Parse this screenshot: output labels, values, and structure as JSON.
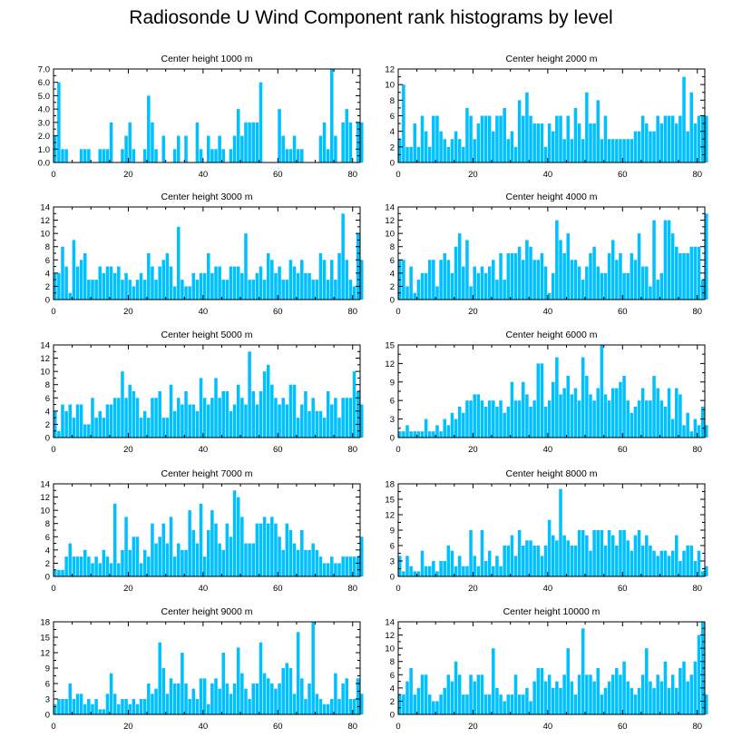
{
  "figure_title": "Radiosonde U Wind Component rank histograms by level",
  "bar_color": "#00c0ff",
  "chart_data": [
    {
      "type": "bar",
      "title": "Center height 1000 m",
      "xlim": [
        0,
        82
      ],
      "ylim": [
        0,
        7
      ],
      "yticks": [
        "0.0",
        "1.0",
        "2.0",
        "3.0",
        "4.0",
        "5.0",
        "6.0",
        "7.0"
      ],
      "ytick_values": [
        0,
        1,
        2,
        3,
        4,
        5,
        6,
        7
      ],
      "xticks": [
        0,
        20,
        40,
        60,
        80
      ],
      "values": [
        2,
        6,
        1,
        1,
        0,
        0,
        0,
        1,
        1,
        1,
        0,
        0,
        1,
        1,
        1,
        3,
        0,
        0,
        1,
        2,
        3,
        1,
        0,
        0,
        1,
        5,
        3,
        1,
        0,
        2,
        0,
        0,
        1,
        2,
        0,
        2,
        0,
        0,
        3,
        1,
        0,
        2,
        1,
        1,
        2,
        1,
        0,
        1,
        2,
        4,
        2,
        3,
        3,
        3,
        3,
        6,
        0,
        0,
        0,
        0,
        4,
        2,
        1,
        1,
        2,
        1,
        1,
        0,
        0,
        0,
        0,
        2,
        3,
        1,
        7,
        2,
        0,
        3,
        4,
        3,
        0,
        3,
        3
      ]
    },
    {
      "type": "bar",
      "title": "Center height 2000 m",
      "xlim": [
        0,
        82
      ],
      "ylim": [
        0,
        12
      ],
      "yticks": [
        "0",
        "2",
        "4",
        "6",
        "8",
        "10",
        "12"
      ],
      "ytick_values": [
        0,
        2,
        4,
        6,
        8,
        10,
        12
      ],
      "xticks": [
        0,
        20,
        40,
        60,
        80
      ],
      "values": [
        3,
        10,
        2,
        2,
        5,
        2,
        6,
        4,
        2,
        6,
        6,
        4,
        3,
        2,
        3,
        4,
        3,
        2,
        7,
        6,
        3,
        5,
        6,
        6,
        6,
        4,
        6,
        6,
        7,
        3,
        4,
        2,
        8,
        6,
        9,
        6,
        5,
        5,
        5,
        2,
        5,
        4,
        6,
        6,
        3,
        6,
        3,
        7,
        5,
        3,
        9,
        5,
        5,
        8,
        3,
        6,
        3,
        3,
        3,
        3,
        3,
        3,
        3,
        4,
        4,
        6,
        5,
        4,
        4,
        6,
        5,
        6,
        6,
        6,
        5,
        6,
        11,
        4,
        9,
        5,
        6,
        6,
        6
      ]
    },
    {
      "type": "bar",
      "title": "Center height 3000 m",
      "xlim": [
        0,
        82
      ],
      "ylim": [
        0,
        14
      ],
      "yticks": [
        "0",
        "2",
        "4",
        "6",
        "8",
        "10",
        "12",
        "14"
      ],
      "ytick_values": [
        0,
        2,
        4,
        6,
        8,
        10,
        12,
        14
      ],
      "xticks": [
        0,
        20,
        40,
        60,
        80
      ],
      "values": [
        4,
        4,
        8,
        5,
        1,
        9,
        5,
        6,
        7,
        3,
        3,
        3,
        5,
        4,
        5,
        5,
        4,
        5,
        3,
        4,
        3,
        2,
        3,
        4,
        3,
        7,
        5,
        3,
        5,
        6,
        7,
        5,
        2,
        11,
        3,
        2,
        2,
        4,
        3,
        4,
        4,
        7,
        4,
        5,
        5,
        3,
        3,
        5,
        5,
        5,
        4,
        10,
        3,
        3,
        4,
        5,
        3,
        7,
        6,
        4,
        5,
        3,
        3,
        6,
        5,
        4,
        6,
        4,
        4,
        3,
        3,
        7,
        6,
        3,
        6,
        3,
        7,
        13,
        6,
        3,
        2,
        10,
        6
      ]
    },
    {
      "type": "bar",
      "title": "Center height 4000 m",
      "xlim": [
        0,
        82
      ],
      "ylim": [
        0,
        14
      ],
      "yticks": [
        "0",
        "2",
        "4",
        "6",
        "8",
        "10",
        "12",
        "14"
      ],
      "ytick_values": [
        0,
        2,
        4,
        6,
        8,
        10,
        12,
        14
      ],
      "xticks": [
        0,
        20,
        40,
        60,
        80
      ],
      "values": [
        6,
        6,
        2,
        5,
        1,
        3,
        4,
        4,
        6,
        6,
        2,
        6,
        7,
        6,
        4,
        8,
        10,
        5,
        9,
        2,
        5,
        4,
        5,
        4,
        5,
        6,
        3,
        7,
        3,
        7,
        7,
        7,
        8,
        6,
        9,
        8,
        6,
        6,
        7,
        5,
        1,
        4,
        12,
        9,
        7,
        10,
        6,
        6,
        5,
        3,
        5,
        7,
        8,
        5,
        4,
        4,
        7,
        9,
        6,
        7,
        4,
        4,
        7,
        6,
        10,
        5,
        5,
        2,
        12,
        3,
        4,
        12,
        12,
        10,
        8,
        7,
        7,
        7,
        8,
        8,
        8,
        3,
        13
      ]
    },
    {
      "type": "bar",
      "title": "Center height 5000 m",
      "xlim": [
        0,
        82
      ],
      "ylim": [
        0,
        14
      ],
      "yticks": [
        "0",
        "2",
        "4",
        "6",
        "8",
        "10",
        "12",
        "14"
      ],
      "ytick_values": [
        0,
        2,
        4,
        6,
        8,
        10,
        12,
        14
      ],
      "xticks": [
        0,
        20,
        40,
        60,
        80
      ],
      "values": [
        4,
        1,
        5,
        4,
        5,
        3,
        5,
        5,
        2,
        2,
        6,
        3,
        4,
        3,
        5,
        5,
        6,
        6,
        10,
        6,
        8,
        7,
        6,
        3,
        4,
        3,
        6,
        6,
        7,
        3,
        3,
        8,
        4,
        6,
        5,
        7,
        5,
        5,
        4,
        9,
        6,
        5,
        6,
        9,
        6,
        7,
        7,
        4,
        5,
        8,
        6,
        5,
        13,
        7,
        5,
        7,
        10,
        11,
        8,
        6,
        5,
        6,
        5,
        8,
        8,
        3,
        5,
        7,
        4,
        6,
        4,
        4,
        3,
        7,
        5,
        6,
        3,
        6,
        6,
        6,
        10,
        7,
        5
      ]
    },
    {
      "type": "bar",
      "title": "Center height 6000 m",
      "xlim": [
        0,
        82
      ],
      "ylim": [
        0,
        15
      ],
      "yticks": [
        "0",
        "3",
        "6",
        "9",
        "12",
        "15"
      ],
      "ytick_values": [
        0,
        3,
        6,
        9,
        12,
        15
      ],
      "xticks": [
        0,
        20,
        40,
        60,
        80
      ],
      "values": [
        1,
        1,
        2,
        1,
        1,
        1,
        1,
        3,
        1,
        1,
        2,
        1,
        3,
        2,
        4,
        3,
        5,
        4,
        6,
        6,
        7,
        7,
        6,
        5,
        6,
        6,
        5,
        6,
        4,
        5,
        9,
        6,
        6,
        9,
        7,
        5,
        6,
        12,
        12,
        5,
        6,
        9,
        13,
        7,
        8,
        10,
        7,
        8,
        6,
        13,
        10,
        7,
        6,
        8,
        15,
        7,
        6,
        8,
        8,
        9,
        10,
        6,
        4,
        5,
        6,
        8,
        6,
        6,
        10,
        8,
        6,
        5,
        8,
        3,
        8,
        7,
        2,
        4,
        1,
        3,
        2,
        5,
        2
      ]
    },
    {
      "type": "bar",
      "title": "Center height 7000 m",
      "xlim": [
        0,
        82
      ],
      "ylim": [
        0,
        14
      ],
      "yticks": [
        "0",
        "2",
        "4",
        "6",
        "8",
        "10",
        "12",
        "14"
      ],
      "ytick_values": [
        0,
        2,
        4,
        6,
        8,
        10,
        12,
        14
      ],
      "xticks": [
        0,
        20,
        40,
        60,
        80
      ],
      "values": [
        1,
        1,
        1,
        3,
        5,
        3,
        3,
        3,
        4,
        3,
        2,
        3,
        2,
        4,
        3,
        2,
        11,
        2,
        4,
        9,
        4,
        6,
        6,
        2,
        4,
        3,
        8,
        5,
        6,
        8,
        5,
        9,
        3,
        5,
        4,
        4,
        10,
        7,
        5,
        11,
        3,
        7,
        10,
        8,
        5,
        4,
        8,
        6,
        13,
        12,
        9,
        5,
        5,
        5,
        8,
        8,
        9,
        8,
        9,
        8,
        6,
        4,
        8,
        7,
        5,
        4,
        7,
        4,
        4,
        5,
        4,
        3,
        2,
        2,
        3,
        2,
        2,
        3,
        3,
        3,
        3,
        3,
        6
      ]
    },
    {
      "type": "bar",
      "title": "Center height 8000 m",
      "xlim": [
        0,
        82
      ],
      "ylim": [
        0,
        18
      ],
      "yticks": [
        "0",
        "3",
        "6",
        "9",
        "12",
        "15",
        "18"
      ],
      "ytick_values": [
        0,
        3,
        6,
        9,
        12,
        15,
        18
      ],
      "xticks": [
        0,
        20,
        40,
        60,
        80
      ],
      "values": [
        4,
        1,
        4,
        2,
        1,
        1,
        5,
        2,
        2,
        3,
        1,
        3,
        3,
        6,
        5,
        2,
        4,
        2,
        2,
        9,
        4,
        2,
        9,
        3,
        5,
        2,
        4,
        2,
        6,
        6,
        8,
        4,
        9,
        6,
        7,
        7,
        6,
        6,
        4,
        6,
        11,
        8,
        7,
        17,
        8,
        7,
        6,
        6,
        9,
        9,
        8,
        5,
        9,
        9,
        9,
        6,
        9,
        8,
        6,
        9,
        9,
        7,
        5,
        8,
        9,
        6,
        8,
        6,
        5,
        4,
        5,
        5,
        4,
        5,
        8,
        3,
        5,
        6,
        6,
        3,
        5,
        1,
        2
      ]
    },
    {
      "type": "bar",
      "title": "Center height 9000 m",
      "xlim": [
        0,
        82
      ],
      "ylim": [
        0,
        18
      ],
      "yticks": [
        "0",
        "3",
        "6",
        "9",
        "12",
        "15",
        "18"
      ],
      "ytick_values": [
        0,
        3,
        6,
        9,
        12,
        15,
        18
      ],
      "xticks": [
        0,
        20,
        40,
        60,
        80
      ],
      "values": [
        2,
        3,
        3,
        3,
        6,
        3,
        4,
        4,
        2,
        3,
        2,
        3,
        1,
        1,
        4,
        8,
        4,
        2,
        3,
        3,
        2,
        3,
        2,
        3,
        3,
        6,
        4,
        5,
        14,
        9,
        4,
        7,
        6,
        6,
        12,
        6,
        3,
        5,
        3,
        7,
        7,
        2,
        6,
        7,
        5,
        12,
        6,
        4,
        6,
        13,
        8,
        5,
        3,
        6,
        6,
        14,
        8,
        7,
        6,
        5,
        6,
        9,
        10,
        9,
        4,
        16,
        7,
        3,
        6,
        18,
        4,
        3,
        2,
        2,
        3,
        8,
        3,
        6,
        7,
        3,
        3,
        7,
        4
      ]
    },
    {
      "type": "bar",
      "title": "Center height 10000 m",
      "xlim": [
        0,
        82
      ],
      "ylim": [
        0,
        14
      ],
      "yticks": [
        "0",
        "2",
        "4",
        "6",
        "8",
        "10",
        "12",
        "14"
      ],
      "ytick_values": [
        0,
        2,
        4,
        6,
        8,
        10,
        12,
        14
      ],
      "xticks": [
        0,
        20,
        40,
        60,
        80
      ],
      "values": [
        3,
        3,
        5,
        7,
        3,
        4,
        6,
        6,
        3,
        2,
        2,
        3,
        4,
        6,
        5,
        8,
        6,
        3,
        3,
        6,
        5,
        6,
        6,
        3,
        3,
        10,
        4,
        3,
        2,
        3,
        3,
        6,
        3,
        3,
        4,
        2,
        5,
        7,
        7,
        5,
        6,
        4,
        5,
        4,
        6,
        10,
        5,
        3,
        6,
        13,
        6,
        6,
        5,
        7,
        3,
        4,
        5,
        6,
        7,
        6,
        8,
        5,
        4,
        3,
        4,
        6,
        10,
        5,
        4,
        6,
        5,
        8,
        4,
        6,
        4,
        7,
        8,
        5,
        6,
        8,
        12,
        14,
        3
      ]
    }
  ]
}
